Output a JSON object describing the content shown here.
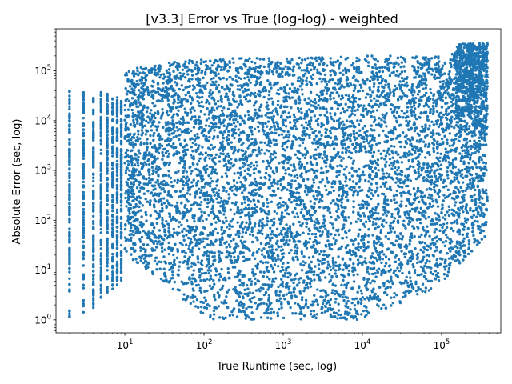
{
  "chart_data": {
    "type": "scatter",
    "title": "[v3.3] Error vs True (log-log) - weighted",
    "xlabel": "True Runtime (sec, log)",
    "ylabel": "Absolute Error (sec, log)",
    "xscale": "log",
    "yscale": "log",
    "xlim": [
      1.35,
      560000
    ],
    "ylim": [
      0.55,
      700000
    ],
    "grid": false,
    "legend": "none",
    "marker_color": "#1f77b4",
    "x_ticks": [
      {
        "base": "10",
        "exp": "1",
        "value": 10
      },
      {
        "base": "10",
        "exp": "2",
        "value": 100
      },
      {
        "base": "10",
        "exp": "3",
        "value": 1000
      },
      {
        "base": "10",
        "exp": "4",
        "value": 10000
      },
      {
        "base": "10",
        "exp": "5",
        "value": 100000
      }
    ],
    "y_ticks": [
      {
        "base": "10",
        "exp": "0",
        "value": 1
      },
      {
        "base": "10",
        "exp": "1",
        "value": 10
      },
      {
        "base": "10",
        "exp": "2",
        "value": 100
      },
      {
        "base": "10",
        "exp": "3",
        "value": 1000
      },
      {
        "base": "10",
        "exp": "4",
        "value": 10000
      },
      {
        "base": "10",
        "exp": "5",
        "value": 100000
      }
    ],
    "discrete_x_columns": [
      {
        "x": 2,
        "y_range": [
          1,
          40000
        ]
      },
      {
        "x": 3,
        "y_range": [
          1.2,
          40000
        ]
      },
      {
        "x": 4,
        "y_range": [
          1.6,
          30000
        ]
      },
      {
        "x": 5,
        "y_range": [
          2.5,
          45000
        ]
      },
      {
        "x": 6,
        "y_range": [
          3,
          35000
        ]
      },
      {
        "x": 7,
        "y_range": [
          4,
          35000
        ]
      },
      {
        "x": 8,
        "y_range": [
          5,
          30000
        ]
      },
      {
        "x": 9,
        "y_range": [
          6,
          30000
        ]
      }
    ],
    "density_envelope": [
      {
        "x": 10,
        "y_low": 20,
        "y_high": 100000
      },
      {
        "x": 30,
        "y_low": 6,
        "y_high": 150000
      },
      {
        "x": 100,
        "y_low": 1,
        "y_high": 170000
      },
      {
        "x": 300,
        "y_low": 1,
        "y_high": 180000
      },
      {
        "x": 1000,
        "y_low": 1,
        "y_high": 180000
      },
      {
        "x": 10000,
        "y_low": 1,
        "y_high": 200000
      },
      {
        "x": 100000,
        "y_low": 5,
        "y_high": 200000
      },
      {
        "x": 380000,
        "y_low": 50,
        "y_high": 370000
      }
    ]
  }
}
